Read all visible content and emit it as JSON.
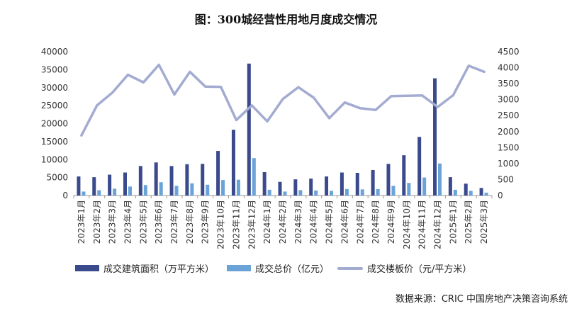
{
  "title": "图：300城经营性用地月度成交情况",
  "source": "数据来源：CRIC 中国房地产决策咨询系统",
  "colors": {
    "area": "#3a4a8c",
    "total": "#6aa3d8",
    "price": "#a3abd1",
    "axis": "#999999",
    "text": "#333333"
  },
  "legend": {
    "area": "成交建筑面积（万平方米）",
    "total": "成交总价（亿元）",
    "price": "成交楼板价（元/平方米）"
  },
  "chart_data": {
    "type": "bar+line",
    "categories": [
      "2023年1月",
      "2023年2月",
      "2023年3月",
      "2023年4月",
      "2023年5月",
      "2023年6月",
      "2023年7月",
      "2023年8月",
      "2023年9月",
      "2023年10月",
      "2023年11月",
      "2023年12月",
      "2024年1月",
      "2024年2月",
      "2024年3月",
      "2024年4月",
      "2024年5月",
      "2024年6月",
      "2024年7月",
      "2024年8月",
      "2024年9月",
      "2024年10月",
      "2024年11月",
      "2024年12月",
      "2025年1月",
      "2025年2月",
      "2025年3月"
    ],
    "left_axis": {
      "min": 0,
      "max": 40000,
      "step": 5000,
      "ticks": [
        "0",
        "5000",
        "10000",
        "15000",
        "20000",
        "25000",
        "30000",
        "35000",
        "40000"
      ]
    },
    "right_axis": {
      "min": 0,
      "max": 4500,
      "step": 500,
      "ticks": [
        "0",
        "500",
        "1000",
        "1500",
        "2000",
        "2500",
        "3000",
        "3500",
        "4000",
        "4500"
      ]
    },
    "series": [
      {
        "name": "成交建筑面积（万平方米）",
        "type": "bar",
        "axis": "left",
        "values": [
          5300,
          5100,
          5800,
          6400,
          8200,
          9200,
          8200,
          8700,
          8800,
          12400,
          18300,
          36700,
          6500,
          3800,
          4500,
          4700,
          5300,
          6400,
          6300,
          7100,
          8800,
          11200,
          16300,
          32600,
          5100,
          3300,
          2100
        ]
      },
      {
        "name": "成交总价（亿元）",
        "type": "bar",
        "axis": "left",
        "values": [
          1100,
          1500,
          1900,
          2500,
          2900,
          3700,
          2700,
          3400,
          3000,
          4300,
          4400,
          10400,
          1600,
          1100,
          1500,
          1400,
          1300,
          1800,
          1700,
          1800,
          2700,
          3500,
          5000,
          8900,
          1600,
          1300,
          800
        ]
      },
      {
        "name": "成交楼板价（元/平方米）",
        "type": "line",
        "axis": "right",
        "values": [
          1880,
          2820,
          3220,
          3780,
          3540,
          4090,
          3160,
          3870,
          3410,
          3400,
          2360,
          2820,
          2320,
          3020,
          3390,
          3060,
          2420,
          2910,
          2730,
          2680,
          3110,
          3120,
          3130,
          2770,
          3140,
          4060,
          3870
        ]
      }
    ]
  }
}
